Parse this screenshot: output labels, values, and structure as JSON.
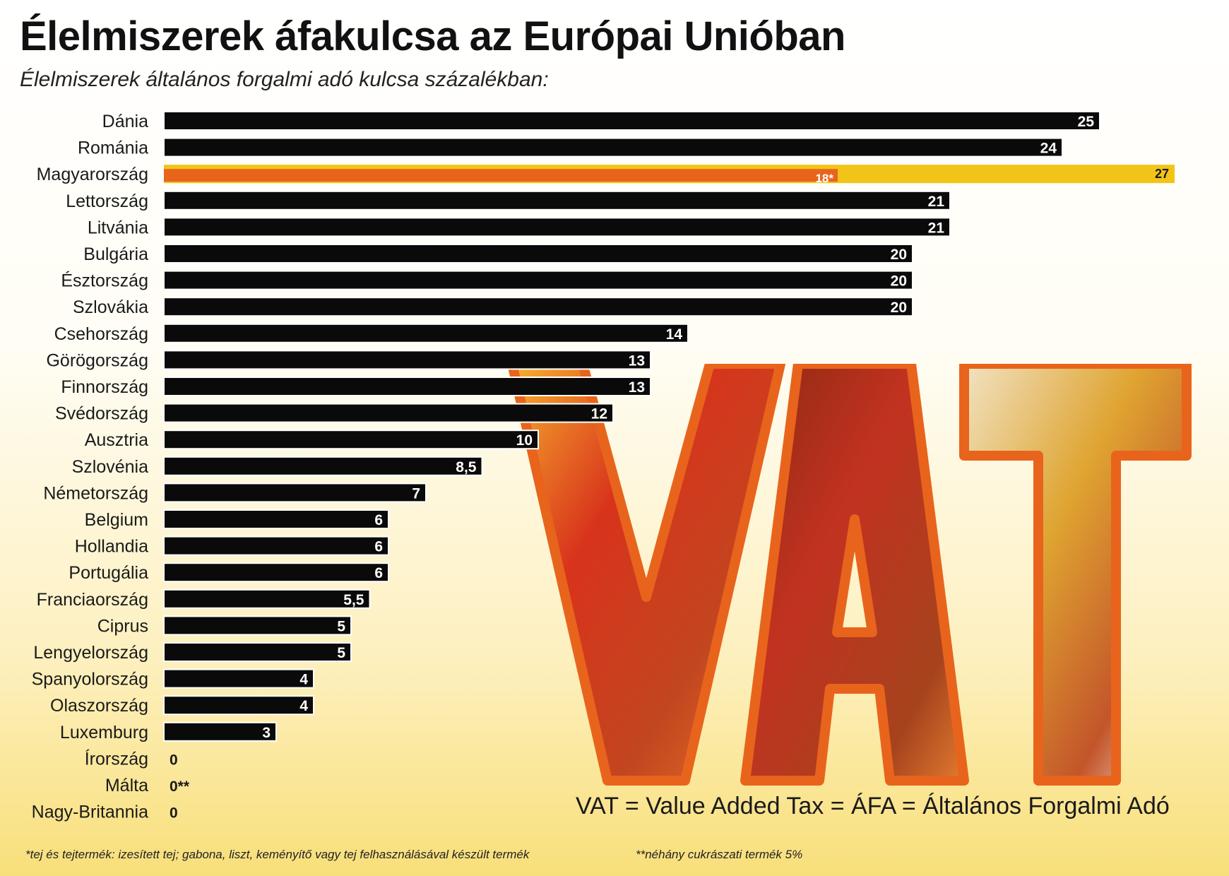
{
  "title": "Élelmiszerek áfakulcsa az Európai Unióban",
  "subtitle": "Élelmiszerek általános forgalmi adó kulcsa százalékban:",
  "vat_caption": "VAT = Value Added Tax = ÁFA = Általános Forgalmi Adó",
  "footnotes": {
    "star": "*tej és tejtermék: izesített tej; gabona, liszt, keményítő vagy tej felhasználásával készült termék",
    "double_star": "**néhány cukrászati termék 5%"
  },
  "vat_art": {
    "letters": [
      "V",
      "A",
      "T"
    ],
    "outline_color": "#e8641c"
  },
  "colors": {
    "bar": "#0a0a0a",
    "bar_highlight": "#e8641c",
    "bar_highlight_alt": "#f2c417",
    "bar_text": "#ffffff"
  },
  "chart_data": {
    "type": "bar",
    "orientation": "horizontal",
    "categories": [
      "Dánia",
      "Románia",
      "Magyarország",
      "Lettország",
      "Litvánia",
      "Bulgária",
      "Észtország",
      "Szlovákia",
      "Csehország",
      "Görögország",
      "Finnország",
      "Svédország",
      "Ausztria",
      "Szlovénia",
      "Németország",
      "Belgium",
      "Hollandia",
      "Portugália",
      "Franciaország",
      "Ciprus",
      "Lengyelország",
      "Spanyolország",
      "Olaszország",
      "Luxemburg",
      "Írország",
      "Málta",
      "Nagy-Britannia"
    ],
    "series": [
      {
        "values": [
          25,
          24,
          27,
          21,
          21,
          20,
          20,
          20,
          14,
          13,
          13,
          12,
          10,
          8.5,
          7,
          6,
          6,
          6,
          5.5,
          5,
          5,
          4,
          4,
          3,
          0,
          0,
          0
        ],
        "labels": [
          "25",
          "24",
          "27",
          "21",
          "21",
          "20",
          "20",
          "20",
          "14",
          "13",
          "13",
          "12",
          "10",
          "8,5",
          "7",
          "6",
          "6",
          "6",
          "5,5",
          "5",
          "5",
          "4",
          "4",
          "3",
          "0",
          "0**",
          "0"
        ]
      }
    ],
    "highlight": {
      "category": "Magyarország",
      "reduced_value": 18,
      "reduced_label": "18*"
    },
    "xlim": [
      0,
      27
    ],
    "grid": false,
    "legend": "none"
  }
}
